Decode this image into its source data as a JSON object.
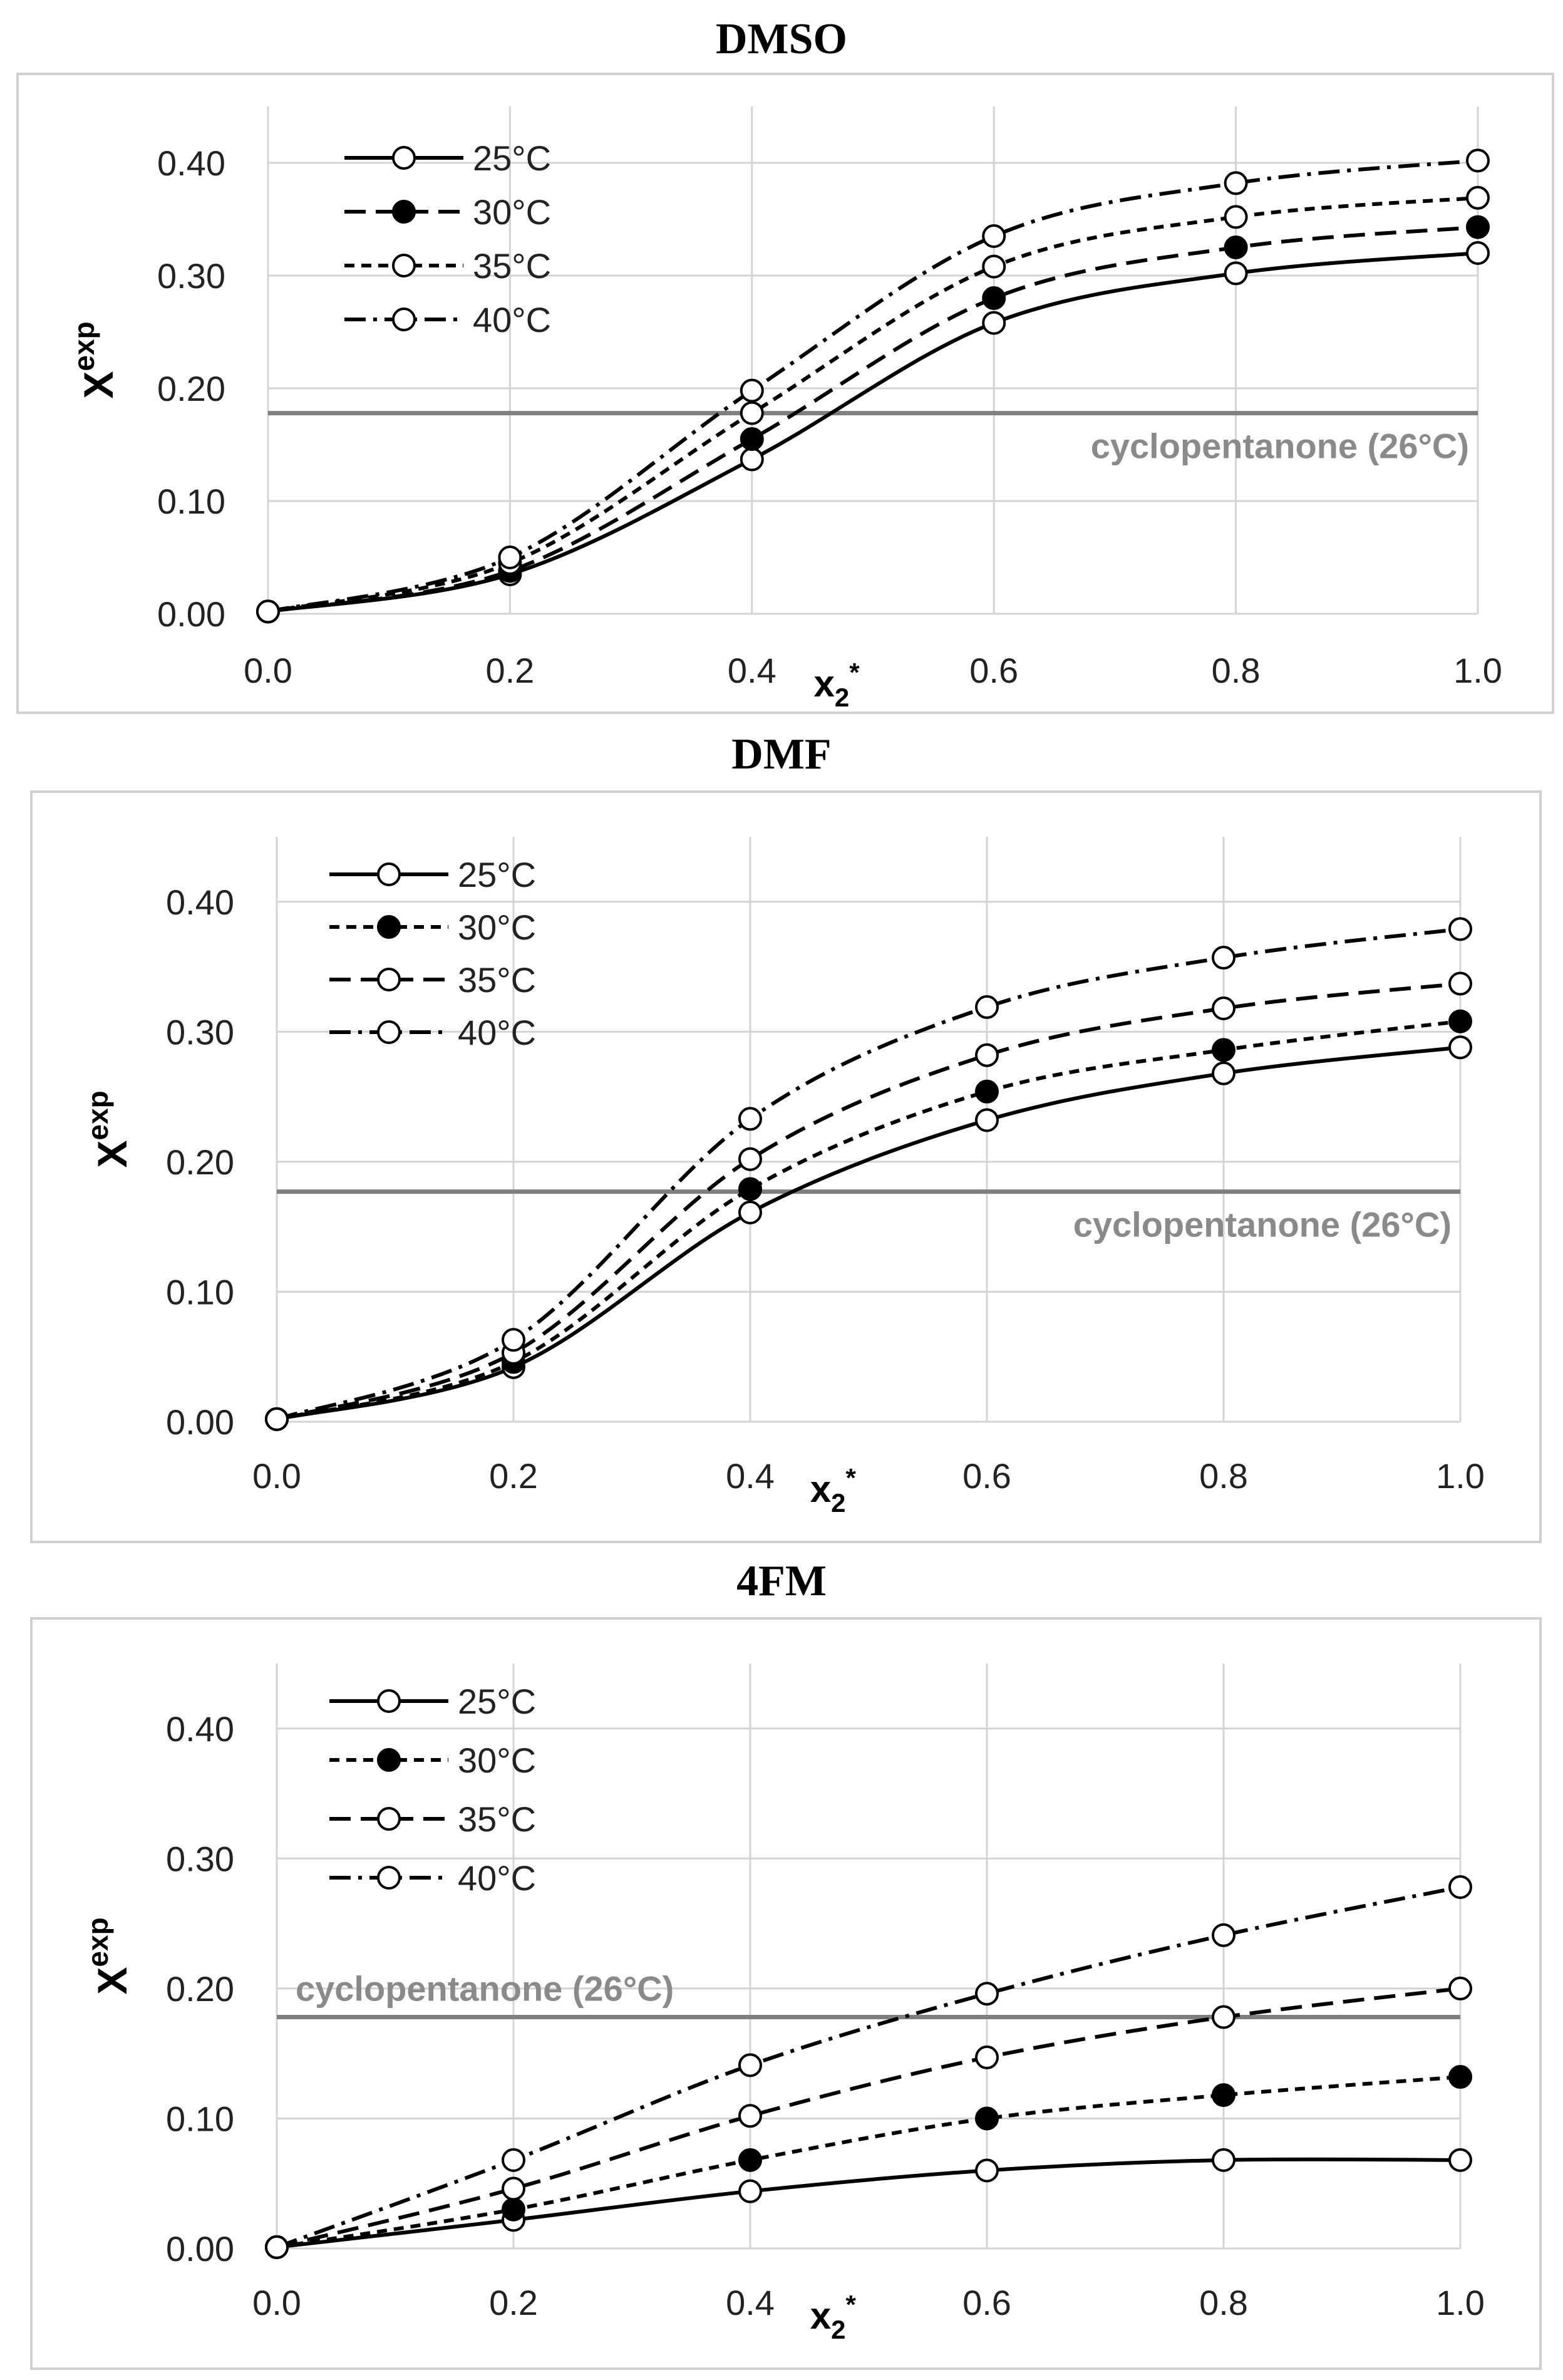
{
  "chart_data": [
    {
      "type": "line",
      "title": "DMSO",
      "xlabel": "x2*",
      "ylabel": "Xexp",
      "xlim": [
        0,
        1
      ],
      "ylim": [
        0,
        0.45
      ],
      "x": [
        0.0,
        0.2,
        0.4,
        0.6,
        0.8,
        1.0
      ],
      "x_ticks": [
        "0.0",
        "0.2",
        "0.4",
        "0.6",
        "0.8",
        "1.0"
      ],
      "y_ticks": [
        {
          "value": 0,
          "label": "0.00"
        },
        {
          "value": 0.1,
          "label": "0.10"
        },
        {
          "value": 0.2,
          "label": "0.20"
        },
        {
          "value": 0.3,
          "label": "0.30"
        },
        {
          "value": 0.4,
          "label": "0.40"
        }
      ],
      "reference": {
        "value": 0.178,
        "label": "cyclopentanone (26°C)",
        "position": "right"
      },
      "legend_position": "top-left",
      "series": [
        {
          "name": "25°C",
          "style": "solid",
          "marker": "open",
          "values": [
            0.002,
            0.035,
            0.137,
            0.258,
            0.302,
            0.32
          ]
        },
        {
          "name": "30°C",
          "style": "dashed",
          "marker": "filled",
          "values": [
            0.002,
            0.038,
            0.155,
            0.28,
            0.325,
            0.343
          ]
        },
        {
          "name": "35°C",
          "style": "shortdash",
          "marker": "open",
          "values": [
            0.002,
            0.045,
            0.178,
            0.308,
            0.352,
            0.369
          ]
        },
        {
          "name": "40°C",
          "style": "dashdot",
          "marker": "open",
          "values": [
            0.002,
            0.05,
            0.198,
            0.335,
            0.382,
            0.402
          ]
        }
      ]
    },
    {
      "type": "line",
      "title": "DMF",
      "xlabel": "x2*",
      "ylabel": "Xexp",
      "xlim": [
        0,
        1
      ],
      "ylim": [
        0,
        0.45
      ],
      "x": [
        0.0,
        0.2,
        0.4,
        0.6,
        0.8,
        1.0
      ],
      "x_ticks": [
        "0.0",
        "0.2",
        "0.4",
        "0.6",
        "0.8",
        "1.0"
      ],
      "y_ticks": [
        {
          "value": 0,
          "label": "0.00"
        },
        {
          "value": 0.1,
          "label": "0.10"
        },
        {
          "value": 0.2,
          "label": "0.20"
        },
        {
          "value": 0.3,
          "label": "0.30"
        },
        {
          "value": 0.4,
          "label": "0.40"
        }
      ],
      "reference": {
        "value": 0.177,
        "label": "cyclopentanone (26°C)",
        "position": "right"
      },
      "legend_position": "top-left",
      "series": [
        {
          "name": "25°C",
          "style": "solid",
          "marker": "open",
          "values": [
            0.002,
            0.042,
            0.161,
            0.232,
            0.268,
            0.288
          ]
        },
        {
          "name": "30°C",
          "style": "shortdash",
          "marker": "filled",
          "values": [
            0.002,
            0.046,
            0.179,
            0.254,
            0.286,
            0.308
          ]
        },
        {
          "name": "35°C",
          "style": "dashed",
          "marker": "open",
          "values": [
            0.002,
            0.053,
            0.202,
            0.282,
            0.318,
            0.337
          ]
        },
        {
          "name": "40°C",
          "style": "dashdot",
          "marker": "open",
          "values": [
            0.002,
            0.063,
            0.233,
            0.319,
            0.357,
            0.379
          ]
        }
      ]
    },
    {
      "type": "line",
      "title": "4FM",
      "xlabel": "x2*",
      "ylabel": "Xexp",
      "xlim": [
        0,
        1
      ],
      "ylim": [
        0,
        0.45
      ],
      "x": [
        0.0,
        0.2,
        0.4,
        0.6,
        0.8,
        1.0
      ],
      "x_ticks": [
        "0.0",
        "0.2",
        "0.4",
        "0.6",
        "0.8",
        "1.0"
      ],
      "y_ticks": [
        {
          "value": 0,
          "label": "0.00"
        },
        {
          "value": 0.1,
          "label": "0.10"
        },
        {
          "value": 0.2,
          "label": "0.20"
        },
        {
          "value": 0.3,
          "label": "0.30"
        },
        {
          "value": 0.4,
          "label": "0.40"
        }
      ],
      "reference": {
        "value": 0.178,
        "label": "cyclopentanone (26°C)",
        "position": "left"
      },
      "legend_position": "top-left",
      "series": [
        {
          "name": "25°C",
          "style": "solid",
          "marker": "open",
          "values": [
            0.001,
            0.022,
            0.044,
            0.06,
            0.068,
            0.068
          ]
        },
        {
          "name": "30°C",
          "style": "shortdash",
          "marker": "filled",
          "values": [
            0.001,
            0.03,
            0.068,
            0.1,
            0.118,
            0.132
          ]
        },
        {
          "name": "35°C",
          "style": "dashed",
          "marker": "open",
          "values": [
            0.001,
            0.046,
            0.102,
            0.147,
            0.178,
            0.2
          ]
        },
        {
          "name": "40°C",
          "style": "dashdot",
          "marker": "open",
          "values": [
            0.001,
            0.068,
            0.141,
            0.196,
            0.241,
            0.278
          ]
        }
      ]
    }
  ]
}
